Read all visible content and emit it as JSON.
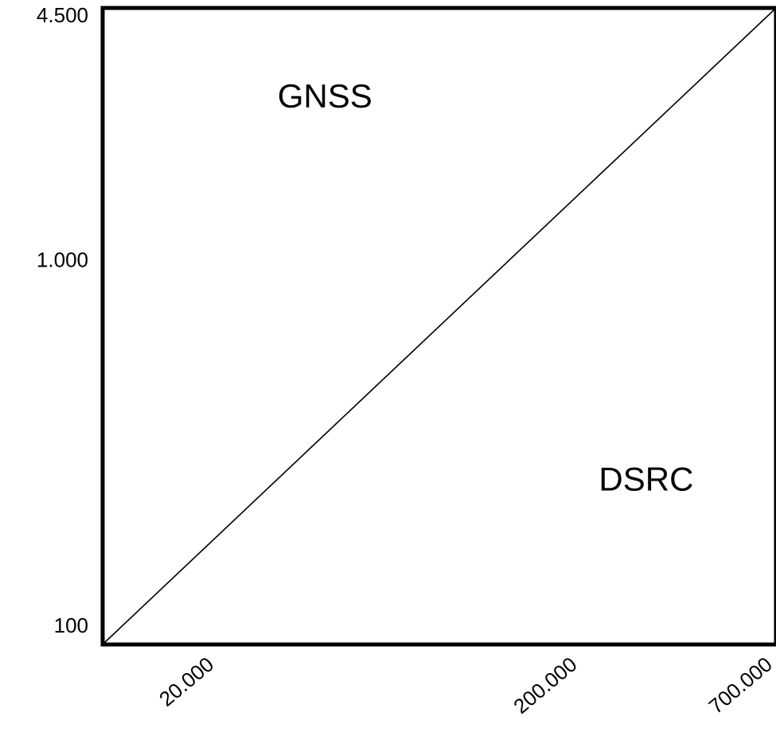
{
  "chart_data": {
    "type": "line",
    "title": "",
    "xlabel": "",
    "ylabel": "",
    "x_scale": "log",
    "y_scale": "log",
    "xlim": [
      10000,
      700000
    ],
    "ylim": [
      100,
      4500
    ],
    "x_ticks": [
      {
        "value": 20000,
        "label": "20.000"
      },
      {
        "value": 200000,
        "label": "200.000"
      },
      {
        "value": 700000,
        "label": "700.000"
      }
    ],
    "y_ticks": [
      {
        "value": 4500,
        "label": "4.500"
      },
      {
        "value": 1000,
        "label": "1.000"
      },
      {
        "value": 100,
        "label": "100"
      }
    ],
    "series": [
      {
        "x": [
          10000,
          700000
        ],
        "y": [
          100,
          4500
        ],
        "color": "#000000"
      }
    ],
    "annotations": [
      {
        "text": "GNSS",
        "x": 30000,
        "y": 2500
      },
      {
        "text": "DSRC",
        "x": 230000,
        "y": 250
      }
    ],
    "grid": false,
    "legend": "none"
  }
}
